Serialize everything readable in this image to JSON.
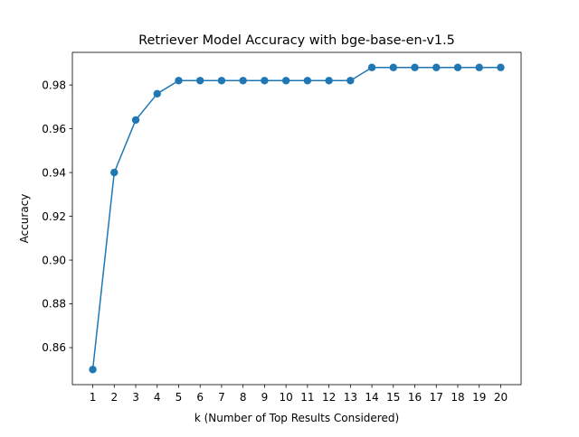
{
  "chart_data": {
    "type": "line",
    "title": "Retriever Model Accuracy with bge-base-en-v1.5",
    "xlabel": "k (Number of Top Results Considered)",
    "ylabel": "Accuracy",
    "x": [
      1,
      2,
      3,
      4,
      5,
      6,
      7,
      8,
      9,
      10,
      11,
      12,
      13,
      14,
      15,
      16,
      17,
      18,
      19,
      20
    ],
    "x_tick_labels": [
      "1",
      "2",
      "3",
      "4",
      "5",
      "6",
      "7",
      "8",
      "9",
      "10",
      "11",
      "12",
      "13",
      "14",
      "15",
      "16",
      "17",
      "18",
      "19",
      "20"
    ],
    "series": [
      {
        "values": [
          0.85,
          0.94,
          0.964,
          0.976,
          0.982,
          0.982,
          0.982,
          0.982,
          0.982,
          0.982,
          0.982,
          0.982,
          0.982,
          0.988,
          0.988,
          0.988,
          0.988,
          0.988,
          0.988,
          0.988
        ],
        "color": "#1f77b4",
        "marker": "circle"
      }
    ],
    "y_ticks": [
      0.86,
      0.88,
      0.9,
      0.92,
      0.94,
      0.96,
      0.98
    ],
    "y_tick_labels": [
      "0.86",
      "0.88",
      "0.90",
      "0.92",
      "0.94",
      "0.96",
      "0.98"
    ],
    "xlim": [
      0.05,
      20.95
    ],
    "ylim": [
      0.8431,
      0.9949
    ],
    "grid": false,
    "legend": "none"
  }
}
